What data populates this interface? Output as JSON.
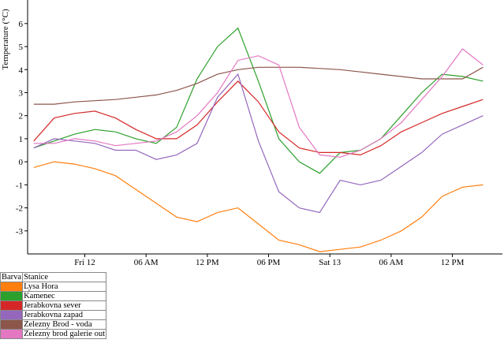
{
  "chart_data": {
    "type": "line",
    "y_label": "Temperature (°C)",
    "x": [
      -5,
      -3,
      -1,
      1,
      3,
      5,
      7,
      9,
      11,
      13,
      15,
      17,
      19,
      21,
      23,
      25,
      27,
      29,
      31,
      33,
      35,
      37,
      39
    ],
    "xlim": [
      -5.6,
      40.9
    ],
    "xticks": [
      {
        "value": 0,
        "label": "Fri 12"
      },
      {
        "value": 6,
        "label": "06 AM"
      },
      {
        "value": 12,
        "label": "12 PM"
      },
      {
        "value": 18,
        "label": "06 PM"
      },
      {
        "value": 24,
        "label": "Sat 13"
      },
      {
        "value": 30,
        "label": "06 AM"
      },
      {
        "value": 36,
        "label": "12 PM"
      }
    ],
    "ylim": [
      -4,
      6.85
    ],
    "yticks": [
      -3,
      -2,
      -1,
      0,
      1,
      2,
      3,
      4,
      5,
      6
    ],
    "grid": false,
    "legend_header": [
      "Barva",
      "Stanice"
    ],
    "series": [
      {
        "name": "Lysa Hora",
        "color": "#ff7f0e",
        "values": [
          -0.25,
          0,
          -0.1,
          -0.3,
          -0.6,
          -1.2,
          -1.8,
          -2.4,
          -2.6,
          -2.2,
          -2.0,
          -2.7,
          -3.4,
          -3.6,
          -3.9,
          -3.8,
          -3.7,
          -3.4,
          -3.0,
          -2.4,
          -1.5,
          -1.1,
          -1.0
        ]
      },
      {
        "name": "Kamenec",
        "color": "#2ca02c",
        "values": [
          0.6,
          0.9,
          1.2,
          1.4,
          1.3,
          1.0,
          0.8,
          1.5,
          3.6,
          5.0,
          5.8,
          3.5,
          1.0,
          0.0,
          -0.5,
          0.4,
          0.5,
          1.0,
          2.0,
          3.0,
          3.8,
          3.7,
          3.5
        ]
      },
      {
        "name": "Jerabkovna sever",
        "color": "#d62728",
        "values": [
          0.9,
          1.9,
          2.1,
          2.2,
          1.9,
          1.4,
          1.0,
          1.0,
          1.6,
          2.6,
          3.5,
          2.6,
          1.3,
          0.6,
          0.4,
          0.4,
          0.3,
          0.7,
          1.3,
          1.7,
          2.1,
          2.4,
          2.7
        ]
      },
      {
        "name": "Jerabkovna zapad",
        "color": "#9467bd",
        "values": [
          0.6,
          1.0,
          0.9,
          0.8,
          0.5,
          0.5,
          0.1,
          0.3,
          0.8,
          2.8,
          3.8,
          0.9,
          -1.3,
          -2.0,
          -2.2,
          -0.8,
          -1.0,
          -0.8,
          -0.2,
          0.4,
          1.2,
          1.6,
          2.0
        ]
      },
      {
        "name": "Zelezny Brod - voda",
        "color": "#8c564b",
        "values": [
          2.5,
          2.5,
          2.6,
          2.65,
          2.7,
          2.8,
          2.9,
          3.1,
          3.4,
          3.8,
          4.0,
          4.1,
          4.1,
          4.1,
          4.05,
          4.0,
          3.9,
          3.8,
          3.7,
          3.6,
          3.6,
          3.6,
          4.1
        ]
      },
      {
        "name": "Zelezny brod galerie out",
        "color": "#e377c2",
        "values": [
          0.8,
          0.8,
          1.0,
          0.9,
          0.7,
          0.8,
          0.9,
          1.3,
          2.0,
          3.0,
          4.4,
          4.6,
          4.2,
          1.5,
          0.3,
          0.2,
          0.5,
          1.0,
          1.7,
          2.7,
          3.7,
          4.9,
          4.2
        ]
      }
    ]
  }
}
